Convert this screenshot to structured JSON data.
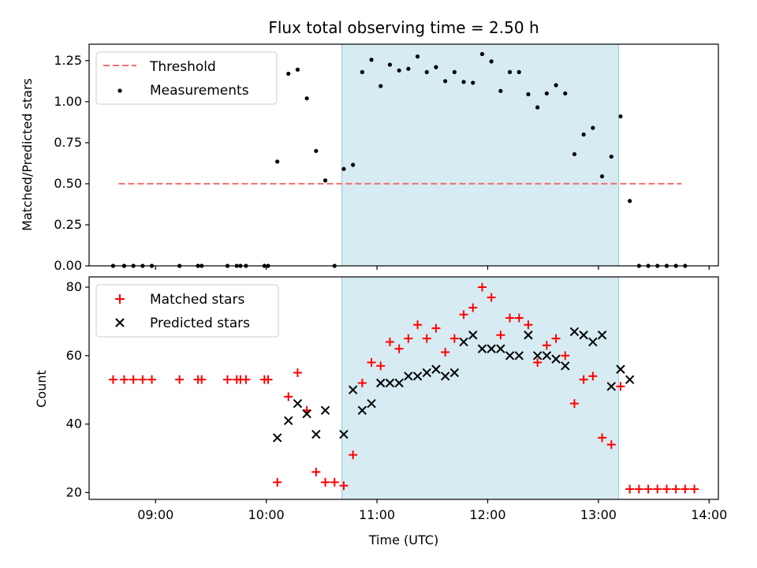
{
  "chart_data": [
    {
      "type": "scatter",
      "title": "Flux total observing time = 2.50 h",
      "xlabel": "",
      "ylabel": "Matched/Predicted stars",
      "ylim": [
        0,
        1.35
      ],
      "xlim": [
        "08:24",
        "14:05"
      ],
      "yticks": [
        "0.00",
        "0.25",
        "0.50",
        "0.75",
        "1.00",
        "1.25"
      ],
      "observing_window": [
        "10:41",
        "13:11"
      ],
      "threshold": {
        "name": "Threshold",
        "value": 0.5,
        "x_range": [
          "08:40",
          "13:45"
        ],
        "color": "#f07070"
      },
      "series": [
        {
          "name": "Measurements",
          "color": "#000000",
          "points": [
            [
              "08:37",
              0
            ],
            [
              "08:43",
              0
            ],
            [
              "08:48",
              0
            ],
            [
              "08:53",
              0
            ],
            [
              "08:58",
              0
            ],
            [
              "09:13",
              0
            ],
            [
              "09:23",
              0
            ],
            [
              "09:25",
              0
            ],
            [
              "09:39",
              0
            ],
            [
              "09:44",
              0
            ],
            [
              "09:46",
              0
            ],
            [
              "09:49",
              0
            ],
            [
              "09:59",
              0
            ],
            [
              "10:01",
              0
            ],
            [
              "10:06",
              0.635
            ],
            [
              "10:12",
              1.17
            ],
            [
              "10:17",
              1.195
            ],
            [
              "10:22",
              1.02
            ],
            [
              "10:27",
              0.7
            ],
            [
              "10:32",
              0.52
            ],
            [
              "10:37",
              0
            ],
            [
              "10:42",
              0.59
            ],
            [
              "10:47",
              0.615
            ],
            [
              "10:52",
              1.18
            ],
            [
              "10:57",
              1.255
            ],
            [
              "11:02",
              1.095
            ],
            [
              "11:07",
              1.225
            ],
            [
              "11:12",
              1.19
            ],
            [
              "11:17",
              1.2
            ],
            [
              "11:22",
              1.275
            ],
            [
              "11:27",
              1.18
            ],
            [
              "11:32",
              1.21
            ],
            [
              "11:37",
              1.125
            ],
            [
              "11:42",
              1.18
            ],
            [
              "11:47",
              1.12
            ],
            [
              "11:52",
              1.115
            ],
            [
              "11:57",
              1.29
            ],
            [
              "12:02",
              1.245
            ],
            [
              "12:07",
              1.065
            ],
            [
              "12:12",
              1.18
            ],
            [
              "12:17",
              1.18
            ],
            [
              "12:22",
              1.045
            ],
            [
              "12:27",
              0.965
            ],
            [
              "12:32",
              1.05
            ],
            [
              "12:37",
              1.1
            ],
            [
              "12:42",
              1.05
            ],
            [
              "12:47",
              0.68
            ],
            [
              "12:52",
              0.8
            ],
            [
              "12:57",
              0.84
            ],
            [
              "13:02",
              0.545
            ],
            [
              "13:07",
              0.665
            ],
            [
              "13:12",
              0.91
            ],
            [
              "13:17",
              0.395
            ],
            [
              "13:22",
              0
            ],
            [
              "13:27",
              0
            ],
            [
              "13:32",
              0
            ],
            [
              "13:37",
              0
            ],
            [
              "13:42",
              0
            ],
            [
              "13:47",
              0
            ]
          ]
        }
      ]
    },
    {
      "type": "scatter",
      "xlabel": "Time (UTC)",
      "ylabel": "Count",
      "ylim": [
        18,
        83
      ],
      "xlim": [
        "08:24",
        "14:05"
      ],
      "xticks": [
        "09:00",
        "10:00",
        "11:00",
        "12:00",
        "13:00",
        "14:00"
      ],
      "yticks": [
        "20",
        "40",
        "60",
        "80"
      ],
      "observing_window": [
        "10:41",
        "13:11"
      ],
      "series": [
        {
          "name": "Matched stars",
          "color": "#ff0000",
          "marker": "+",
          "points": [
            [
              "08:37",
              53
            ],
            [
              "08:43",
              53
            ],
            [
              "08:48",
              53
            ],
            [
              "08:53",
              53
            ],
            [
              "08:58",
              53
            ],
            [
              "09:13",
              53
            ],
            [
              "09:23",
              53
            ],
            [
              "09:25",
              53
            ],
            [
              "09:39",
              53
            ],
            [
              "09:44",
              53
            ],
            [
              "09:46",
              53
            ],
            [
              "09:49",
              53
            ],
            [
              "09:59",
              53
            ],
            [
              "10:01",
              53
            ],
            [
              "10:06",
              23
            ],
            [
              "10:12",
              48
            ],
            [
              "10:17",
              55
            ],
            [
              "10:22",
              44
            ],
            [
              "10:27",
              26
            ],
            [
              "10:32",
              23
            ],
            [
              "10:37",
              23
            ],
            [
              "10:42",
              22
            ],
            [
              "10:47",
              31
            ],
            [
              "10:52",
              52
            ],
            [
              "10:57",
              58
            ],
            [
              "11:02",
              57
            ],
            [
              "11:07",
              64
            ],
            [
              "11:12",
              62
            ],
            [
              "11:17",
              65
            ],
            [
              "11:22",
              69
            ],
            [
              "11:27",
              65
            ],
            [
              "11:32",
              68
            ],
            [
              "11:37",
              61
            ],
            [
              "11:42",
              65
            ],
            [
              "11:47",
              72
            ],
            [
              "11:52",
              74
            ],
            [
              "11:57",
              80
            ],
            [
              "12:02",
              77
            ],
            [
              "12:07",
              66
            ],
            [
              "12:12",
              71
            ],
            [
              "12:17",
              71
            ],
            [
              "12:22",
              69
            ],
            [
              "12:27",
              58
            ],
            [
              "12:32",
              63
            ],
            [
              "12:37",
              65
            ],
            [
              "12:42",
              60
            ],
            [
              "12:47",
              46
            ],
            [
              "12:52",
              53
            ],
            [
              "12:57",
              54
            ],
            [
              "13:02",
              36
            ],
            [
              "13:07",
              34
            ],
            [
              "13:12",
              51
            ],
            [
              "13:17",
              21
            ],
            [
              "13:22",
              21
            ],
            [
              "13:27",
              21
            ],
            [
              "13:32",
              21
            ],
            [
              "13:37",
              21
            ],
            [
              "13:42",
              21
            ],
            [
              "13:47",
              21
            ],
            [
              "13:52",
              21
            ]
          ]
        },
        {
          "name": "Predicted stars",
          "color": "#000000",
          "marker": "x",
          "points": [
            [
              "10:06",
              36
            ],
            [
              "10:12",
              41
            ],
            [
              "10:17",
              46
            ],
            [
              "10:22",
              43
            ],
            [
              "10:27",
              37
            ],
            [
              "10:32",
              44
            ],
            [
              "10:42",
              37
            ],
            [
              "10:47",
              50
            ],
            [
              "10:52",
              44
            ],
            [
              "10:57",
              46
            ],
            [
              "11:02",
              52
            ],
            [
              "11:07",
              52
            ],
            [
              "11:12",
              52
            ],
            [
              "11:17",
              54
            ],
            [
              "11:22",
              54
            ],
            [
              "11:27",
              55
            ],
            [
              "11:32",
              56
            ],
            [
              "11:37",
              54
            ],
            [
              "11:42",
              55
            ],
            [
              "11:47",
              64
            ],
            [
              "11:52",
              66
            ],
            [
              "11:57",
              62
            ],
            [
              "12:02",
              62
            ],
            [
              "12:07",
              62
            ],
            [
              "12:12",
              60
            ],
            [
              "12:17",
              60
            ],
            [
              "12:22",
              66
            ],
            [
              "12:27",
              60
            ],
            [
              "12:32",
              60
            ],
            [
              "12:37",
              59
            ],
            [
              "12:42",
              57
            ],
            [
              "12:47",
              67
            ],
            [
              "12:52",
              66
            ],
            [
              "12:57",
              64
            ],
            [
              "13:02",
              66
            ],
            [
              "13:07",
              51
            ],
            [
              "13:12",
              56
            ],
            [
              "13:17",
              53
            ]
          ]
        }
      ]
    }
  ]
}
